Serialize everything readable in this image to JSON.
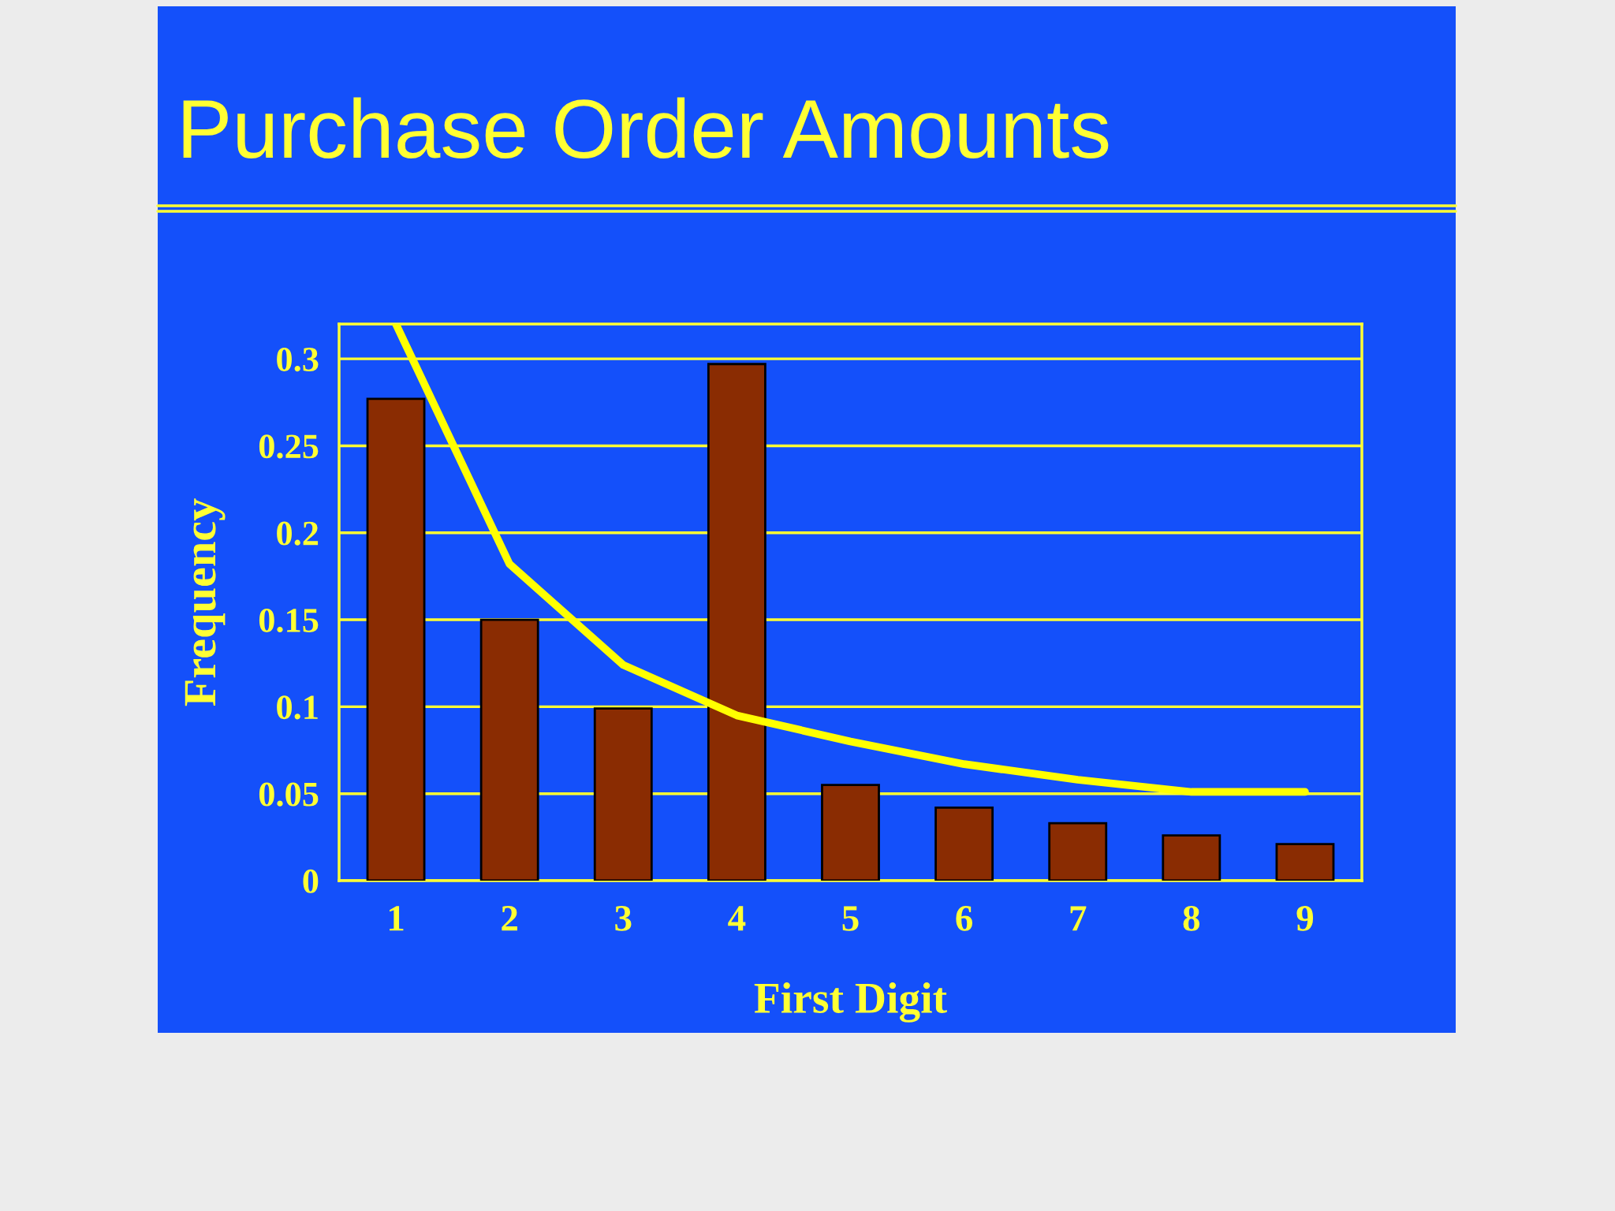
{
  "chart_data": {
    "type": "bar",
    "title": "Purchase Order Amounts",
    "xlabel": "First Digit",
    "ylabel": "Frequency",
    "categories": [
      "1",
      "2",
      "3",
      "4",
      "5",
      "6",
      "7",
      "8",
      "9"
    ],
    "series": [
      {
        "color": "#8a2c02",
        "values": [
          0.277,
          0.15,
          0.099,
          0.297,
          0.055,
          0.042,
          0.033,
          0.026,
          0.021
        ]
      },
      {
        "type": "line",
        "color": "#ffff00",
        "values": [
          0.32,
          0.182,
          0.124,
          0.095,
          0.08,
          0.067,
          0.058,
          0.051,
          0.051
        ]
      }
    ],
    "ylim": [
      0,
      0.32
    ],
    "yticks": [
      0,
      0.05,
      0.1,
      0.15,
      0.2,
      0.25,
      0.3
    ],
    "grid": "y",
    "line_style": "solid"
  }
}
